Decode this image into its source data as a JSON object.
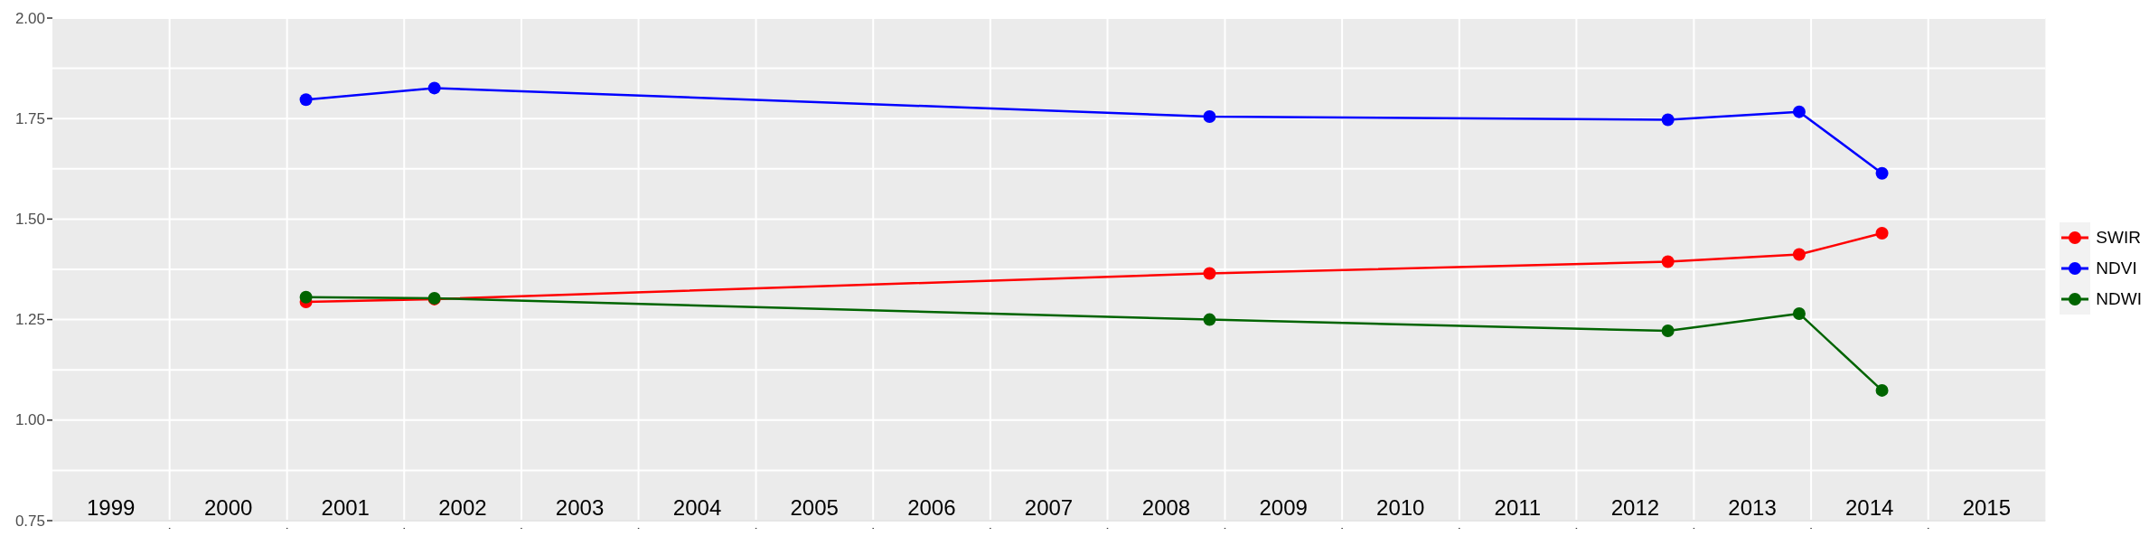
{
  "chart_data": {
    "type": "line",
    "series": [
      {
        "name": "SWIR",
        "color": "#ff0000",
        "x": [
          "2001-03-01",
          "2002-04-05",
          "2008-11-14",
          "2012-10-12",
          "2013-11-25",
          "2014-08-10"
        ],
        "values": [
          1.294,
          1.301,
          1.365,
          1.394,
          1.412,
          1.465
        ]
      },
      {
        "name": "NDVI",
        "color": "#0000ff",
        "x": [
          "2001-03-01",
          "2002-04-05",
          "2008-11-14",
          "2012-10-12",
          "2013-11-25",
          "2014-08-10"
        ],
        "values": [
          1.797,
          1.826,
          1.755,
          1.747,
          1.767,
          1.614
        ]
      },
      {
        "name": "NDWI",
        "color": "#006400",
        "x": [
          "2001-03-01",
          "2002-04-05",
          "2008-11-14",
          "2012-10-12",
          "2013-11-25",
          "2014-08-10"
        ],
        "values": [
          1.306,
          1.303,
          1.25,
          1.222,
          1.265,
          1.074
        ]
      }
    ],
    "xlim": [
      "1999-01-01",
      "2016-01-01"
    ],
    "xticks": [
      {
        "value": "1999-07-02",
        "label": "1999"
      },
      {
        "value": "2000-01-01",
        "label": null
      },
      {
        "value": "2000-07-02",
        "label": "2000"
      },
      {
        "value": "2001-01-01",
        "label": null
      },
      {
        "value": "2001-07-02",
        "label": "2001"
      },
      {
        "value": "2002-01-01",
        "label": null
      },
      {
        "value": "2002-07-02",
        "label": "2002"
      },
      {
        "value": "2003-01-01",
        "label": null
      },
      {
        "value": "2003-07-02",
        "label": "2003"
      },
      {
        "value": "2004-01-01",
        "label": null
      },
      {
        "value": "2004-07-02",
        "label": "2004"
      },
      {
        "value": "2005-01-01",
        "label": null
      },
      {
        "value": "2005-07-02",
        "label": "2005"
      },
      {
        "value": "2006-01-01",
        "label": null
      },
      {
        "value": "2006-07-02",
        "label": "2006"
      },
      {
        "value": "2007-01-01",
        "label": null
      },
      {
        "value": "2007-07-02",
        "label": "2007"
      },
      {
        "value": "2008-01-01",
        "label": null
      },
      {
        "value": "2008-07-02",
        "label": "2008"
      },
      {
        "value": "2009-01-01",
        "label": null
      },
      {
        "value": "2009-07-02",
        "label": "2009"
      },
      {
        "value": "2010-01-01",
        "label": null
      },
      {
        "value": "2010-07-02",
        "label": "2010"
      },
      {
        "value": "2011-01-01",
        "label": null
      },
      {
        "value": "2011-07-02",
        "label": "2011"
      },
      {
        "value": "2012-01-01",
        "label": null
      },
      {
        "value": "2012-07-02",
        "label": "2012"
      },
      {
        "value": "2013-01-01",
        "label": null
      },
      {
        "value": "2013-07-02",
        "label": "2013"
      },
      {
        "value": "2014-01-01",
        "label": null
      },
      {
        "value": "2014-07-02",
        "label": "2014"
      },
      {
        "value": "2015-01-01",
        "label": null
      },
      {
        "value": "2015-07-02",
        "label": "2015"
      }
    ],
    "ylim": [
      0.75,
      2.0
    ],
    "yticks": [
      {
        "value": 0.75,
        "label": "0.75"
      },
      {
        "value": 0.875,
        "label": null
      },
      {
        "value": 1.0,
        "label": "1.00"
      },
      {
        "value": 1.125,
        "label": null
      },
      {
        "value": 1.25,
        "label": "1.25"
      },
      {
        "value": 1.375,
        "label": null
      },
      {
        "value": 1.5,
        "label": "1.50"
      },
      {
        "value": 1.625,
        "label": null
      },
      {
        "value": 1.75,
        "label": "1.75"
      },
      {
        "value": 1.875,
        "label": null
      },
      {
        "value": 2.0,
        "label": "2.00"
      }
    ],
    "grid": true,
    "legend": "right",
    "marker": "circle",
    "line_style": "solid"
  }
}
